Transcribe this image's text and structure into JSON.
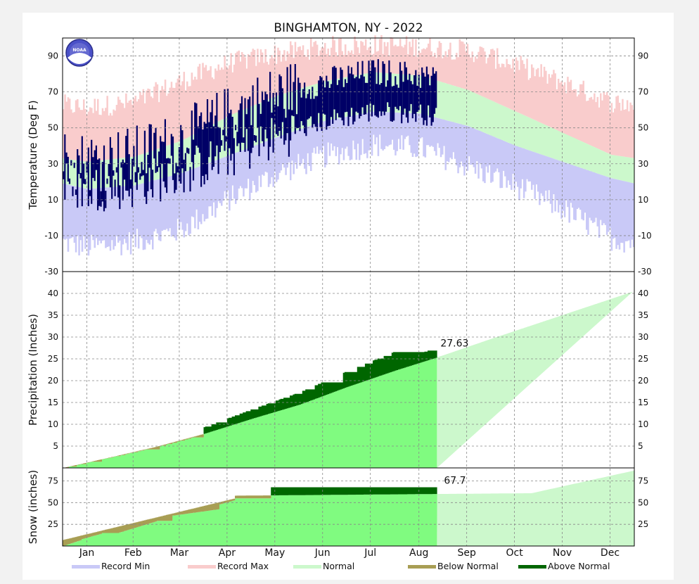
{
  "chart_data": {
    "type": "area",
    "title": "BINGHAMTON, NY - 2022",
    "months": [
      "Jan",
      "Feb",
      "Mar",
      "Apr",
      "May",
      "Jun",
      "Jul",
      "Aug",
      "Sep",
      "Oct",
      "Nov",
      "Dec"
    ],
    "grid": true,
    "colors": {
      "record_min": "#c9c9f7",
      "record_max": "#f9cccc",
      "normal_band": "#ccf8cc",
      "observed": "#000066",
      "precip_to_date": "#80fb80",
      "precip_future": "#ccf8cc",
      "below_normal": "#a89e54",
      "above_normal": "#006600"
    },
    "panels": [
      {
        "name": "temperature",
        "ylabel": "Temperature (Deg F)",
        "ylim": [
          -30,
          100
        ],
        "yticks": [
          "90",
          "70",
          "50",
          "30",
          "10",
          "-10",
          "-30"
        ],
        "normal_high_by_month": [
          31,
          34,
          43,
          57,
          68,
          76,
          81,
          79,
          71,
          59,
          47,
          35
        ],
        "normal_low_by_month": [
          16,
          18,
          25,
          35,
          45,
          54,
          59,
          58,
          51,
          40,
          31,
          22
        ],
        "record_high_by_month": [
          60,
          63,
          75,
          85,
          90,
          94,
          95,
          94,
          92,
          84,
          74,
          63
        ],
        "record_low_by_month": [
          -15,
          -12,
          -5,
          12,
          26,
          36,
          42,
          40,
          30,
          19,
          6,
          -10
        ],
        "observed_through": "Aug 28"
      },
      {
        "name": "precipitation",
        "ylabel": "Precipitation (Inches)",
        "ylim": [
          0,
          45
        ],
        "yticks": [
          "40",
          "35",
          "30",
          "25",
          "20",
          "15",
          "10",
          "5"
        ],
        "normal_cumulative_end_of_month": [
          2.5,
          4.8,
          7.8,
          11.2,
          14.5,
          18.5,
          22.3,
          25.8,
          29.5,
          33.2,
          36.8,
          40.5
        ],
        "observed_to_date": 27.63,
        "observed_to_date_label": "27.63"
      },
      {
        "name": "snow",
        "ylabel": "Snow (inches)",
        "ylim": [
          0,
          90
        ],
        "yticks": [
          "75",
          "50",
          "25"
        ],
        "observed_to_date": 67.7,
        "observed_to_date_label": "67.7"
      }
    ],
    "legend": {
      "placement": "bottom",
      "items": [
        {
          "label": "Record Min",
          "color": "#c9c9f7"
        },
        {
          "label": "Record Max",
          "color": "#f9cccc"
        },
        {
          "label": "Normal",
          "color": "#ccf8cc"
        },
        {
          "label": "Below Normal",
          "color": "#a89e54"
        },
        {
          "label": "Above Normal",
          "color": "#006600"
        }
      ]
    }
  },
  "logo": {
    "text": "NOAA",
    "icon": "noaa-logo-icon"
  }
}
